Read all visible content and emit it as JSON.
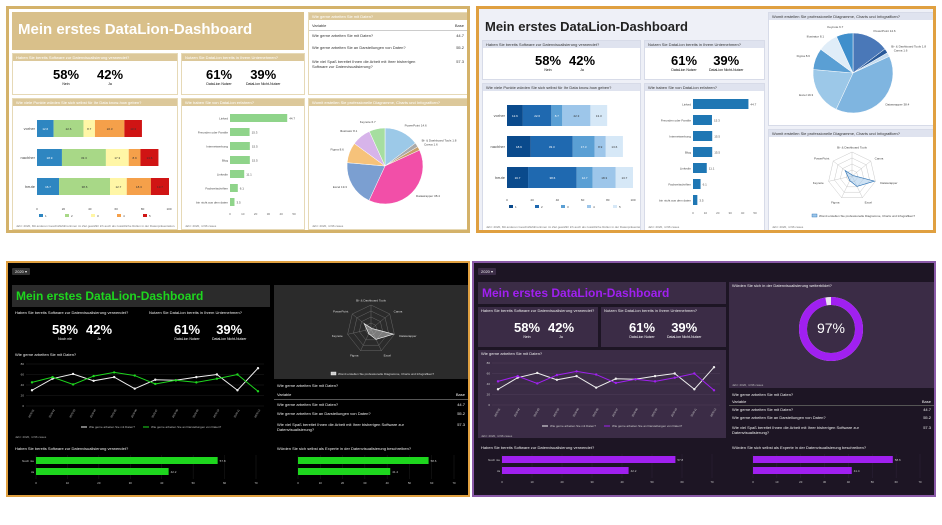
{
  "dashboard_title": "Mein erstes DataLion-Dashboard",
  "year_filter": "2020 ▾",
  "kpi_software": {
    "title": "Haben Sie bereits Software zur Datenvisualisierung verwendet?",
    "a_value": "58%",
    "a_label": "Nein",
    "b_value": "42%",
    "b_label": "Ja"
  },
  "kpi_software_dark": {
    "a_label": "Noch nie",
    "b_label": "Ja"
  },
  "kpi_datalion": {
    "title": "Nutzen Sie DataLion bereits in Ihrem Unternehmen?",
    "a_value": "61%",
    "a_label": "DataLion Nutzer",
    "b_value": "39%",
    "b_label": "DataLion Nicht-Nutzer"
  },
  "stacked": {
    "title": "Wie viele Punkte würden Sie sich selbst für Ihr Data know-how geben?",
    "rows": [
      "vorher",
      "nachher",
      "heute"
    ],
    "segments": [
      [
        12.6,
        22.6,
        8.7,
        22.3,
        13.3
      ],
      [
        18.9,
        33.3,
        17.3,
        8.9,
        13.6
      ],
      [
        16.7,
        38.6,
        12.7,
        18.3,
        13.7
      ]
    ],
    "legend": [
      "1",
      "2",
      "3",
      "4",
      "5"
    ],
    "axis_ticks": [
      "0",
      "20",
      "40",
      "60",
      "80",
      "100"
    ],
    "footer": "Jahr: 2020, Mit anderen Geschäftsführerinnen im Ziel gewählt/ Ich auch als zusätzliche Rollen in der Datenpräsentation. Daten anzeigen"
  },
  "how_heard": {
    "title": "Wie haben Sie von DataLion erfahren?",
    "categories": [
      "Linked",
      "Freunden oder Familie",
      "Internetwerbung",
      "Blog",
      "Linkedin",
      "Fachzeitschriften",
      "bin nicht aus dem daten"
    ],
    "values": [
      44.7,
      15.3,
      15.5,
      15.5,
      11.1,
      6.1,
      3.5
    ]
  },
  "table": {
    "title": "Wie gerne arbeiten Sie mit Daten?",
    "col_var": "Variable",
    "col_val": "Base",
    "rows": [
      {
        "label": "Wie gerne arbeiten Sie mit Daten?",
        "value": "44.7"
      },
      {
        "label": "Wie gerne arbeiten Sie an Darstellungen von Daten?",
        "value": "55.2"
      },
      {
        "label": "Wie viel Spaß bereitet Ihnen die Arbeit mit Ihrer bisherigen Software zur Datenvisualisierung?",
        "value": "57.3"
      }
    ]
  },
  "pie": {
    "title": "Womit erstellen Sie professionelle Diagramme, Charts und Infografiken?",
    "labels": [
      "PowerPoint",
      "Bi- & Dashboard Tools",
      "Canva",
      "Datawrapper",
      "Excel",
      "Figma",
      "Illustrator",
      "Keynote"
    ],
    "values": [
      14.6,
      1.8,
      1.6,
      38.4,
      19.3,
      8.6,
      8.1,
      6.7
    ],
    "print": [
      "14.6",
      "1.8",
      "1.6",
      "38.4",
      "19.3",
      "8.6",
      "8.1",
      "6.7"
    ]
  },
  "radar": {
    "title": "Womit erstellen Sie professionelle Diagramme, Charts und Infografiken?",
    "axes": [
      "Bi- & Dashboard Tools",
      "Canva",
      "Datawrapper",
      "Excel",
      "Figma",
      "Keynote",
      "PowerPoint"
    ],
    "values": [
      1.8,
      1.6,
      38.4,
      19.3,
      8.6,
      6.7,
      14.6
    ],
    "legend": "Womit erstellen Sie professionelle Diagramme, Charts und Infografiken?"
  },
  "line": {
    "title": "Wie gerne arbeiten Sie mit Daten?",
    "x": [
      "2020-01",
      "2020-02",
      "2020-03",
      "2020-04",
      "2020-05",
      "2020-06",
      "2020-07",
      "2020-08",
      "2020-09",
      "2020-10",
      "2020-11",
      "2020-12"
    ],
    "s1": [
      30,
      52,
      61,
      48,
      55,
      33,
      50,
      49,
      55,
      60,
      30,
      72
    ],
    "s2": [
      45,
      55,
      41,
      57,
      64,
      58,
      42,
      49,
      45,
      52,
      60,
      28
    ],
    "y_ticks": [
      "0",
      "20",
      "40",
      "60",
      "80"
    ],
    "legend1": "Wie gerne arbeiten Sie mit Daten?",
    "legend2": "Wie gerne arbeiten Sie an Darstellungen von Daten?"
  },
  "hbar_software": {
    "title": "Haben Sie bereits Software zur Datenvisualisierung verwendet?",
    "labels": [
      "Noch nie",
      "Ja"
    ],
    "values": [
      57.8,
      42.2
    ]
  },
  "hbar_expert": {
    "title": "Würden Sie sich selbst als Experte in der Datenvisualisierung beschreiben?",
    "values": [
      58.6,
      41.4
    ]
  },
  "gauge": {
    "title": "Würden Sie sich in der Datenvisualisierung weiterbildet?",
    "value": "97%"
  },
  "footer_year": "Jahr: 2020, n=96 cases",
  "footer_year_short": "Jahr: 2020",
  "colors": {
    "gold": "#d4b26a",
    "gold_hdr": "#dcc89a",
    "peri_border": "#8f8cc0",
    "orange_border": "#e0a040",
    "purple_border": "#8a5aa8",
    "green": "#1ed61e",
    "violet": "#a020f0"
  }
}
